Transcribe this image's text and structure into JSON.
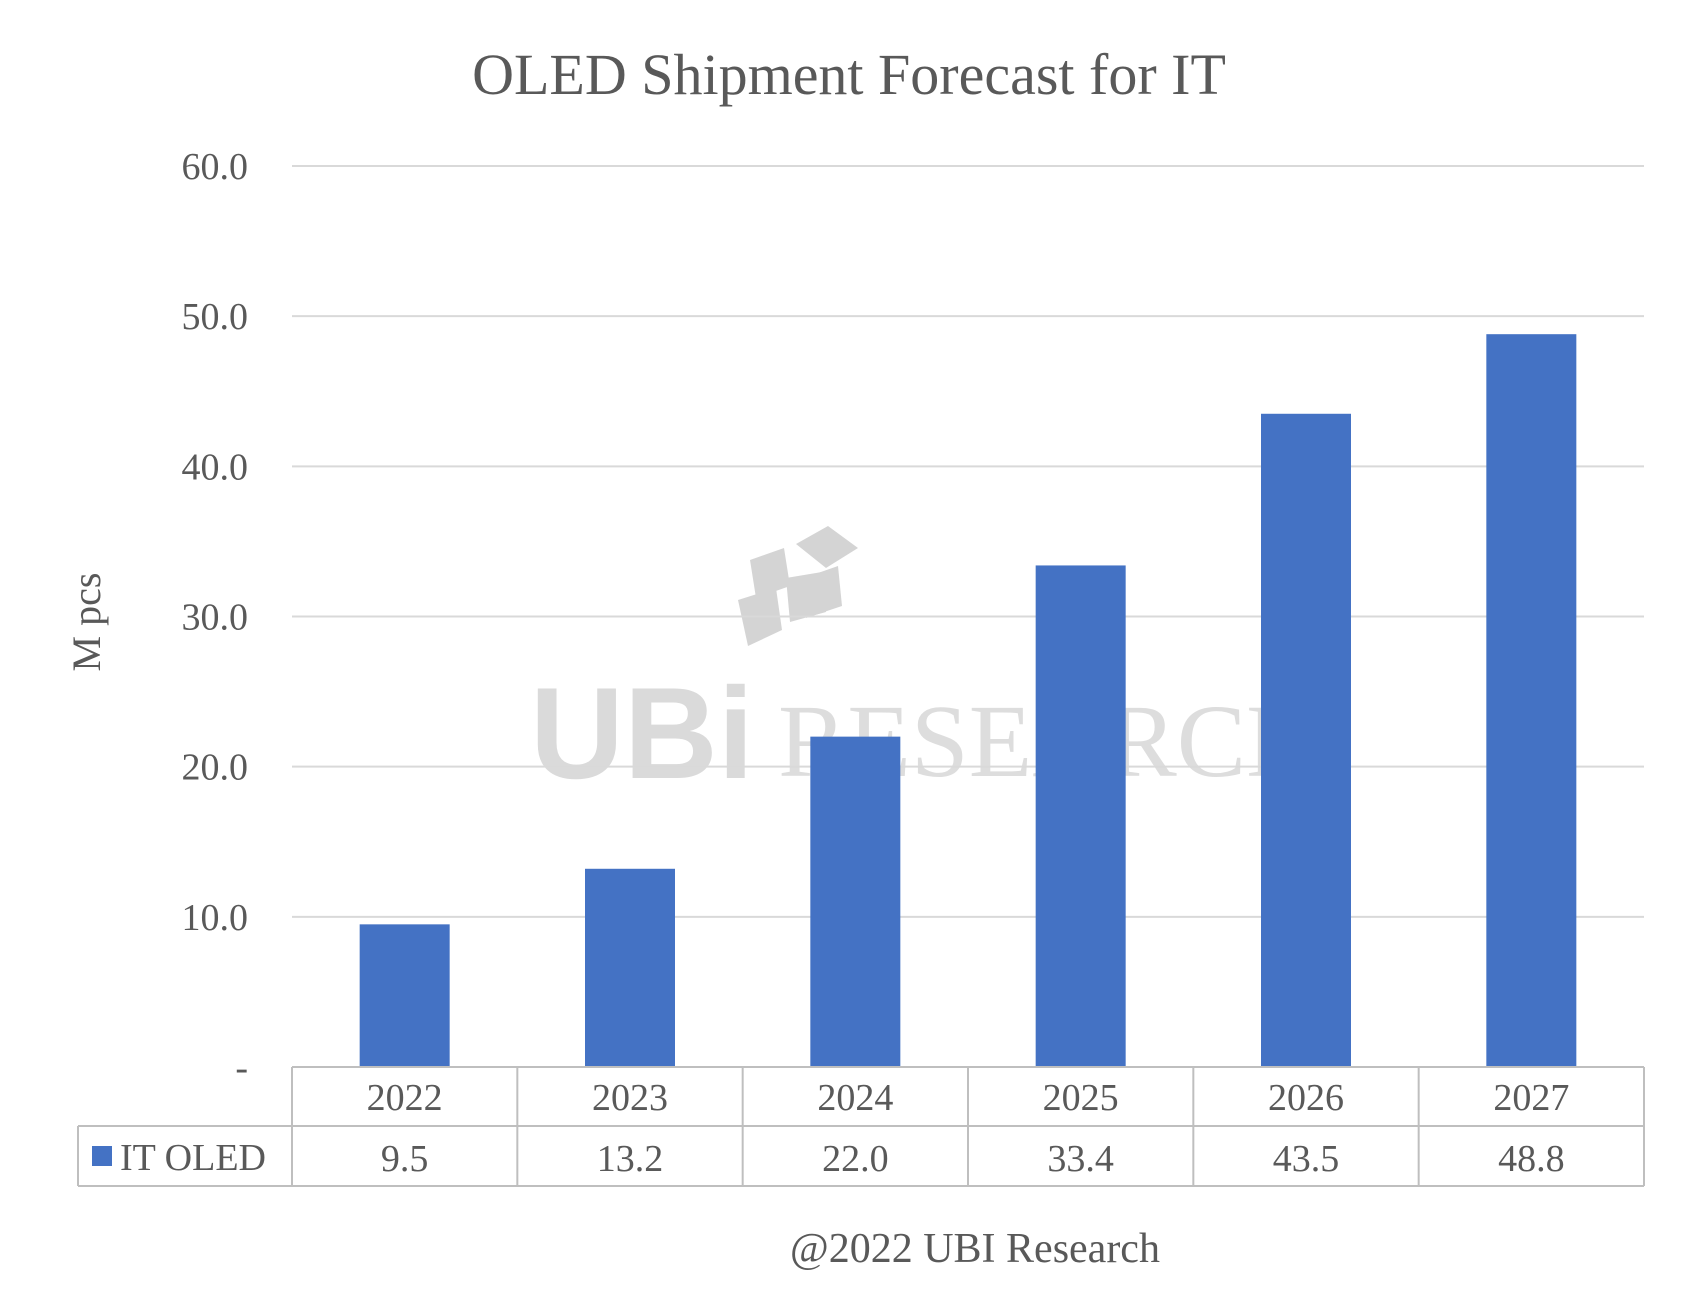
{
  "chart_data": {
    "type": "bar",
    "title": "OLED Shipment Forecast for IT",
    "ylabel": "M pcs",
    "xlabel": "",
    "categories": [
      "2022",
      "2023",
      "2024",
      "2025",
      "2026",
      "2027"
    ],
    "series": [
      {
        "name": "IT OLED",
        "values": [
          9.5,
          13.2,
          22.0,
          33.4,
          43.5,
          48.8
        ],
        "value_labels": [
          "9.5",
          "13.2",
          "22.0",
          "33.4",
          "43.5",
          "48.8"
        ],
        "color": "#4472c4"
      }
    ],
    "ylim": [
      0,
      60
    ],
    "yticks": [
      0,
      10,
      20,
      30,
      40,
      50,
      60
    ],
    "ytick_labels": [
      "-",
      "10.0",
      "20.0",
      "30.0",
      "40.0",
      "50.0",
      "60.0"
    ],
    "grid": true,
    "legend": "data-table"
  },
  "watermark": {
    "text": "RESEARCH",
    "logo": "UBi"
  },
  "credit": "@2022 UBI Research"
}
